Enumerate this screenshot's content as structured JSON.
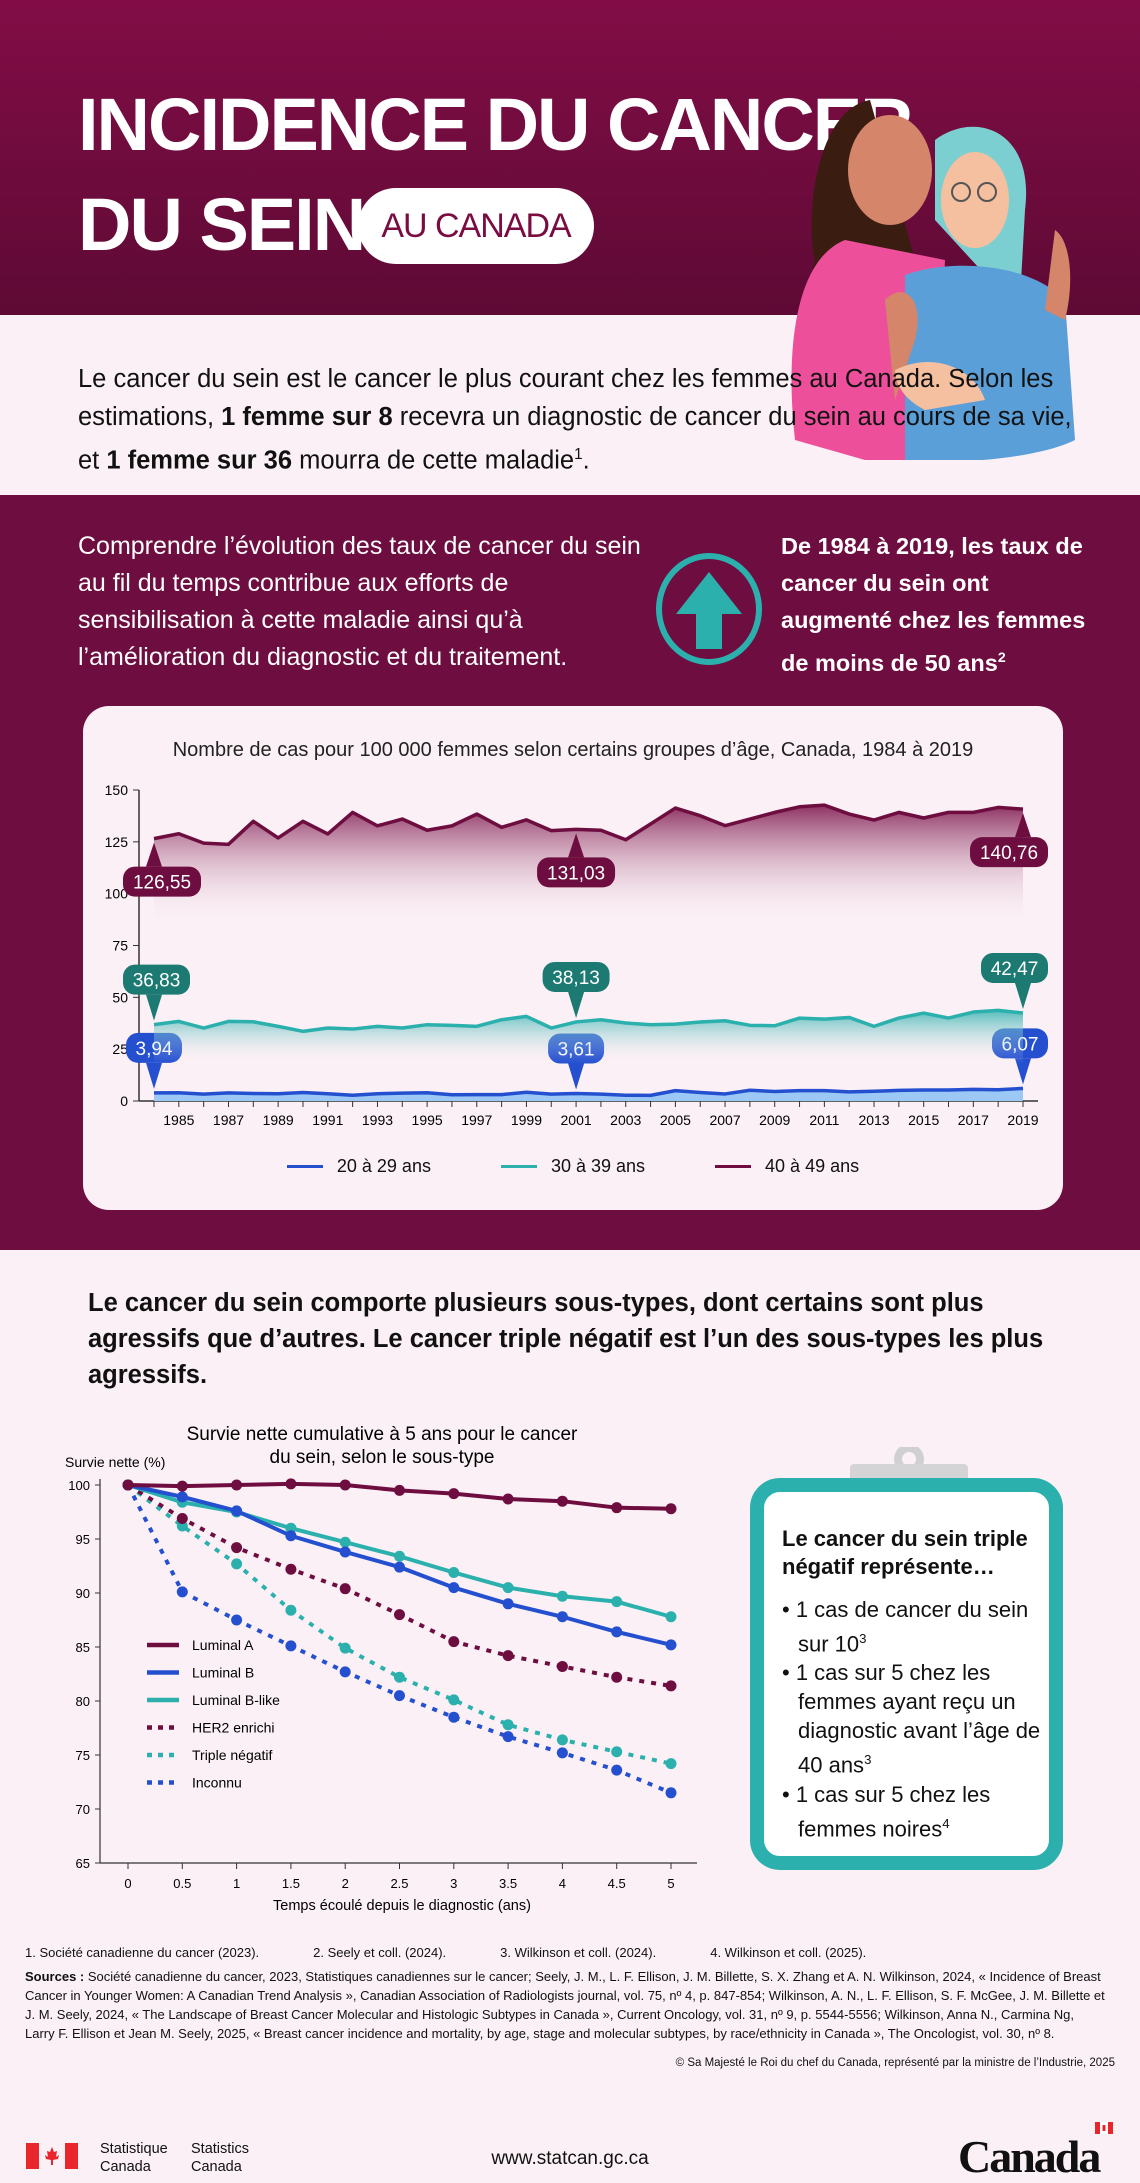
{
  "header": {
    "title_line1": "INCIDENCE DU CANCER",
    "title_line2": "DU SEIN",
    "pill": "AU CANADA",
    "illustration": "two-women-embracing"
  },
  "intro": {
    "p1": "Le cancer du sein est le cancer le plus courant chez les femmes au Canada. Selon les estimations, ",
    "b1": "1 femme sur 8",
    "p2": " recevra un diagnostic de cancer du sein au cours de sa vie, et ",
    "b2": "1 femme sur 36",
    "p3": " mourra de cette maladie",
    "sup": "1",
    "p4": "."
  },
  "section2": {
    "text": "Comprendre l’évolution des taux de cancer du sein au fil du temps contribue aux efforts de sensibilisation à cette maladie ainsi qu’à l’amélioration du diagnostic et du traitement.",
    "icon": "up-arrow-circle-icon",
    "bold": "De 1984 à 2019, les taux de cancer du sein ont augmenté chez les femmes de moins de 50 ans",
    "bold_sup": "2"
  },
  "colors": {
    "maroon": "#6e0d3f",
    "teal": "#2bb0ad",
    "blue": "#2450d0",
    "dark_teal": "#1d7a73"
  },
  "subtypes_heading": "Le cancer du sein comporte plusieurs sous-types, dont certains sont plus agressifs que d’autres. Le cancer triple négatif est l’un des sous-types les plus agressifs.",
  "clipboard": {
    "heading": "Le cancer du sein triple négatif représente…",
    "items": [
      {
        "text": "1 cas de cancer du sein sur 10",
        "sup": "3"
      },
      {
        "text": "1 cas sur 5 chez les femmes ayant reçu un diagnostic avant l’âge de 40 ans",
        "sup": "3"
      },
      {
        "text": "1 cas sur 5 chez les femmes noires",
        "sup": "4"
      }
    ]
  },
  "footnotes": [
    "1. Société canadienne du cancer (2023).",
    "2. Seely et coll. (2024).",
    "3. Wilkinson et coll. (2024).",
    "4. Wilkinson et coll. (2025)."
  ],
  "sources": {
    "label": "Sources :",
    "text": "Société canadienne du cancer, 2023, Statistiques canadiennes sur le cancer; Seely, J. M., L. F. Ellison, J. M. Billette, S. X. Zhang et A. N. Wilkinson, 2024, « Incidence of Breast Cancer in Younger Women: A Canadian Trend Analysis », Canadian Association of Radiologists journal, vol. 75, nº 4, p. 847-854; Wilkinson, A. N., L. F. Ellison, S. F. McGee, J. M. Billette et J. M. Seely, 2024, « The Landscape of Breast Cancer Molecular and Histologic Subtypes in Canada », Current Oncology, vol. 31, nº 9, p. 5544-5556; Wilkinson, Anna N., Carmina Ng, Larry F. Ellison et Jean M. Seely, 2025, « Breast cancer incidence and mortality, by age, stage and molecular subtypes, by race/ethnicity in Canada », The Oncologist, vol. 30, nº 8."
  },
  "copyright": "© Sa Majesté le Roi du chef du Canada, représenté par la ministre de l’Industrie, 2025",
  "footer": {
    "stat_fr1": "Statistique",
    "stat_fr2": "Canada",
    "stat_en1": "Statistics",
    "stat_en2": "Canada",
    "url": "www.statcan.gc.ca",
    "wordmark": "Canada"
  },
  "chart_data": [
    {
      "type": "area",
      "title": "Nombre de cas pour 100 000 femmes selon certains groupes d’âge, Canada, 1984 à 2019",
      "ylim": [
        0,
        150
      ],
      "yticks": [
        0,
        25,
        50,
        75,
        100,
        125,
        150
      ],
      "xticks": [
        1985,
        1987,
        1989,
        1991,
        1993,
        1995,
        1997,
        1999,
        2001,
        2003,
        2005,
        2007,
        2009,
        2011,
        2013,
        2015,
        2017,
        2019
      ],
      "x": [
        1984,
        1985,
        1986,
        1987,
        1988,
        1989,
        1990,
        1991,
        1992,
        1993,
        1994,
        1995,
        1996,
        1997,
        1998,
        1999,
        2000,
        2001,
        2002,
        2003,
        2004,
        2005,
        2006,
        2007,
        2008,
        2009,
        2010,
        2011,
        2012,
        2013,
        2014,
        2015,
        2016,
        2017,
        2018,
        2019
      ],
      "legend": "bottom",
      "series": [
        {
          "name": "20 à 29 ans",
          "color": "#2450d0",
          "values": [
            3.94,
            4.0,
            3.3,
            3.9,
            3.6,
            3.5,
            4.1,
            3.5,
            2.8,
            3.5,
            3.8,
            4.0,
            3.0,
            3.1,
            3.1,
            4.2,
            3.3,
            3.61,
            3.3,
            2.8,
            2.7,
            5.0,
            4.1,
            3.4,
            5.2,
            4.6,
            5.0,
            5.0,
            4.4,
            4.7,
            5.1,
            5.3,
            5.3,
            5.6,
            5.4,
            6.07
          ],
          "labels": [
            {
              "x": 1984,
              "text": "3,94"
            },
            {
              "x": 2001,
              "text": "3,61"
            },
            {
              "x": 2019,
              "text": "6,07"
            }
          ]
        },
        {
          "name": "30 à 39 ans",
          "color": "#2bb0ad",
          "values": [
            36.83,
            38.4,
            35.2,
            38.4,
            38.2,
            36.0,
            33.6,
            35.2,
            34.7,
            36.0,
            35.2,
            36.8,
            36.5,
            36.0,
            39.2,
            40.8,
            35.2,
            38.13,
            39.2,
            37.6,
            36.8,
            37.1,
            38.1,
            38.7,
            36.5,
            36.3,
            40.0,
            39.5,
            40.3,
            36.0,
            40.0,
            42.4,
            40.0,
            42.9,
            43.7,
            42.47
          ],
          "labels": [
            {
              "x": 1984,
              "text": "36,83"
            },
            {
              "x": 2001,
              "text": "38,13"
            },
            {
              "x": 2019,
              "text": "42,47"
            }
          ]
        },
        {
          "name": "40 à 49 ans",
          "color": "#6e0d3f",
          "values": [
            126.55,
            128.9,
            124.4,
            123.8,
            134.9,
            126.9,
            134.9,
            128.8,
            139.2,
            132.7,
            136.0,
            130.6,
            132.7,
            138.4,
            132.0,
            135.6,
            130.4,
            131.03,
            130.6,
            126.0,
            133.6,
            141.3,
            137.6,
            132.8,
            136.0,
            139.2,
            141.9,
            142.7,
            138.4,
            135.5,
            139.2,
            136.5,
            139.2,
            139.2,
            141.6,
            140.76
          ],
          "labels": [
            {
              "x": 1984,
              "text": "126,55"
            },
            {
              "x": 2001,
              "text": "131,03"
            },
            {
              "x": 2019,
              "text": "140,76"
            }
          ]
        }
      ]
    },
    {
      "type": "line",
      "title": "Survie nette cumulative à 5 ans pour le cancer du sein, selon le sous-type",
      "ylabel": "Survie nette (%)",
      "xlabel": "Temps écoulé depuis le diagnostic (ans)",
      "ylim": [
        65,
        100
      ],
      "yticks": [
        65,
        70,
        75,
        80,
        85,
        90,
        95,
        100
      ],
      "x": [
        0,
        0.5,
        1,
        1.5,
        2,
        2.5,
        3,
        3.5,
        4,
        4.5,
        5
      ],
      "legend": "left-inside",
      "series": [
        {
          "name": "Luminal A",
          "color": "#6e0d3f",
          "dashed": false,
          "values": [
            100,
            99.9,
            100,
            100.1,
            100,
            99.5,
            99.2,
            98.7,
            98.5,
            97.9,
            97.8
          ]
        },
        {
          "name": "Luminal B",
          "color": "#2450d0",
          "dashed": false,
          "values": [
            100,
            98.9,
            97.6,
            95.3,
            93.8,
            92.4,
            90.5,
            89.0,
            87.8,
            86.4,
            85.2
          ]
        },
        {
          "name": "Luminal B-like",
          "color": "#2bb0ad",
          "dashed": false,
          "values": [
            100,
            98.4,
            97.5,
            96.0,
            94.7,
            93.4,
            91.9,
            90.5,
            89.7,
            89.2,
            87.8
          ]
        },
        {
          "name": "HER2 enrichi",
          "color": "#6e0d3f",
          "dashed": true,
          "values": [
            100,
            96.9,
            94.2,
            92.2,
            90.4,
            88.0,
            85.5,
            84.2,
            83.2,
            82.2,
            81.4
          ]
        },
        {
          "name": "Triple négatif",
          "color": "#2bb0ad",
          "dashed": true,
          "values": [
            100,
            96.2,
            92.7,
            88.4,
            84.9,
            82.2,
            80.1,
            77.8,
            76.4,
            75.3,
            74.2
          ]
        },
        {
          "name": "Inconnu",
          "color": "#2450d0",
          "dashed": true,
          "values": [
            100,
            90.1,
            87.5,
            85.1,
            82.7,
            80.5,
            78.5,
            76.7,
            75.2,
            73.6,
            71.5
          ]
        }
      ]
    }
  ]
}
